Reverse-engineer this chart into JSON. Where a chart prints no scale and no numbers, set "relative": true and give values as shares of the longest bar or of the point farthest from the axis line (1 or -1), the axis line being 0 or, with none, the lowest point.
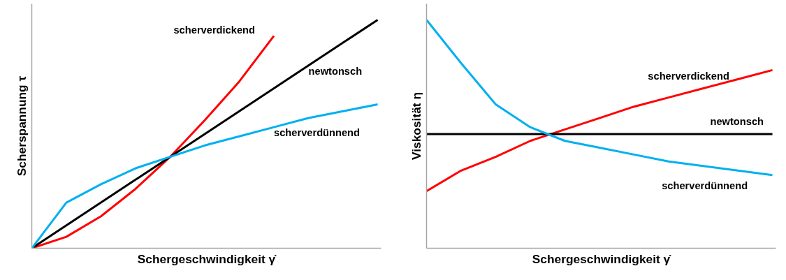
{
  "chart_data": [
    {
      "type": "line",
      "relative": true,
      "xlabel": "Schergeschwindigkeit γ̇",
      "ylabel": "Scherspannung τ",
      "categories": [
        null,
        null,
        null,
        null,
        null,
        null,
        null,
        null,
        null,
        null,
        null
      ],
      "series": [
        {
          "name": "scherverdickend",
          "color": "#ff0000",
          "values": [
            0,
            0.05,
            0.14,
            0.26,
            0.4,
            0.56,
            0.73,
            0.93,
            null,
            null,
            null
          ]
        },
        {
          "name": "newtonsch",
          "color": "#000000",
          "values": [
            0,
            0.1,
            0.2,
            0.3,
            0.4,
            0.5,
            0.6,
            0.7,
            0.8,
            0.9,
            1.0
          ]
        },
        {
          "name": "scherverdünnend",
          "color": "#00b0f0",
          "values": [
            0,
            0.2,
            0.28,
            0.35,
            0.4,
            0.45,
            0.49,
            0.53,
            0.57,
            0.6,
            0.63
          ]
        }
      ]
    },
    {
      "type": "line",
      "relative": true,
      "xlabel": "Schergeschwindigkeit γ̇",
      "ylabel": "Viskosität η",
      "categories": [
        null,
        null,
        null,
        null,
        null,
        null,
        null,
        null,
        null,
        null,
        null
      ],
      "series": [
        {
          "name": "scherverdickend",
          "color": "#ff0000",
          "values": [
            0.25,
            0.34,
            0.4,
            0.47,
            0.52,
            0.57,
            0.62,
            0.66,
            0.7,
            0.74,
            0.78
          ]
        },
        {
          "name": "newtonsch",
          "color": "#000000",
          "values": [
            0.5,
            0.5,
            0.5,
            0.5,
            0.5,
            0.5,
            0.5,
            0.5,
            0.5,
            0.5,
            0.5
          ]
        },
        {
          "name": "scherverdünnend",
          "color": "#00b0f0",
          "values": [
            1.0,
            0.81,
            0.63,
            0.53,
            0.47,
            0.44,
            0.41,
            0.38,
            0.36,
            0.34,
            0.32
          ]
        }
      ]
    }
  ]
}
